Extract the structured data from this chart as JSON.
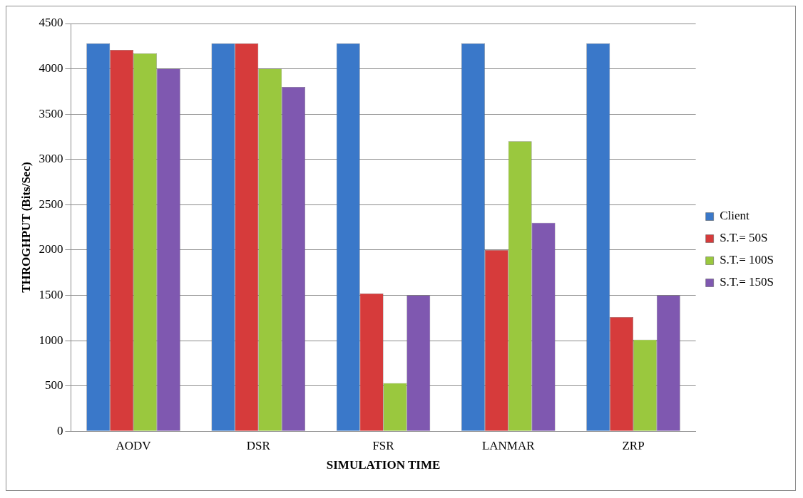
{
  "chart_data": {
    "type": "bar",
    "xlabel": "SIMULATION TIME",
    "ylabel": "THROGHPUT (Bits/Sec)",
    "categories": [
      "AODV",
      "DSR",
      "FSR",
      "LANMAR",
      "ZRP"
    ],
    "series": [
      {
        "name": "Client",
        "color": "#3a78c9",
        "values": [
          4280,
          4280,
          4280,
          4280,
          4280
        ]
      },
      {
        "name": "S.T.= 50S",
        "color": "#d63b3b",
        "values": [
          4210,
          4280,
          1520,
          2000,
          1260
        ]
      },
      {
        "name": "S.T.= 100S",
        "color": "#9ac83e",
        "values": [
          4170,
          4000,
          530,
          3200,
          1010
        ]
      },
      {
        "name": "S.T.= 150S",
        "color": "#7f58b0",
        "values": [
          4000,
          3800,
          1500,
          2300,
          1500
        ]
      }
    ],
    "ylim": [
      0,
      4500
    ],
    "yticks": [
      0,
      500,
      1000,
      1500,
      2000,
      2500,
      3000,
      3500,
      4000,
      4500
    ],
    "grid": "y",
    "legend": "right"
  }
}
